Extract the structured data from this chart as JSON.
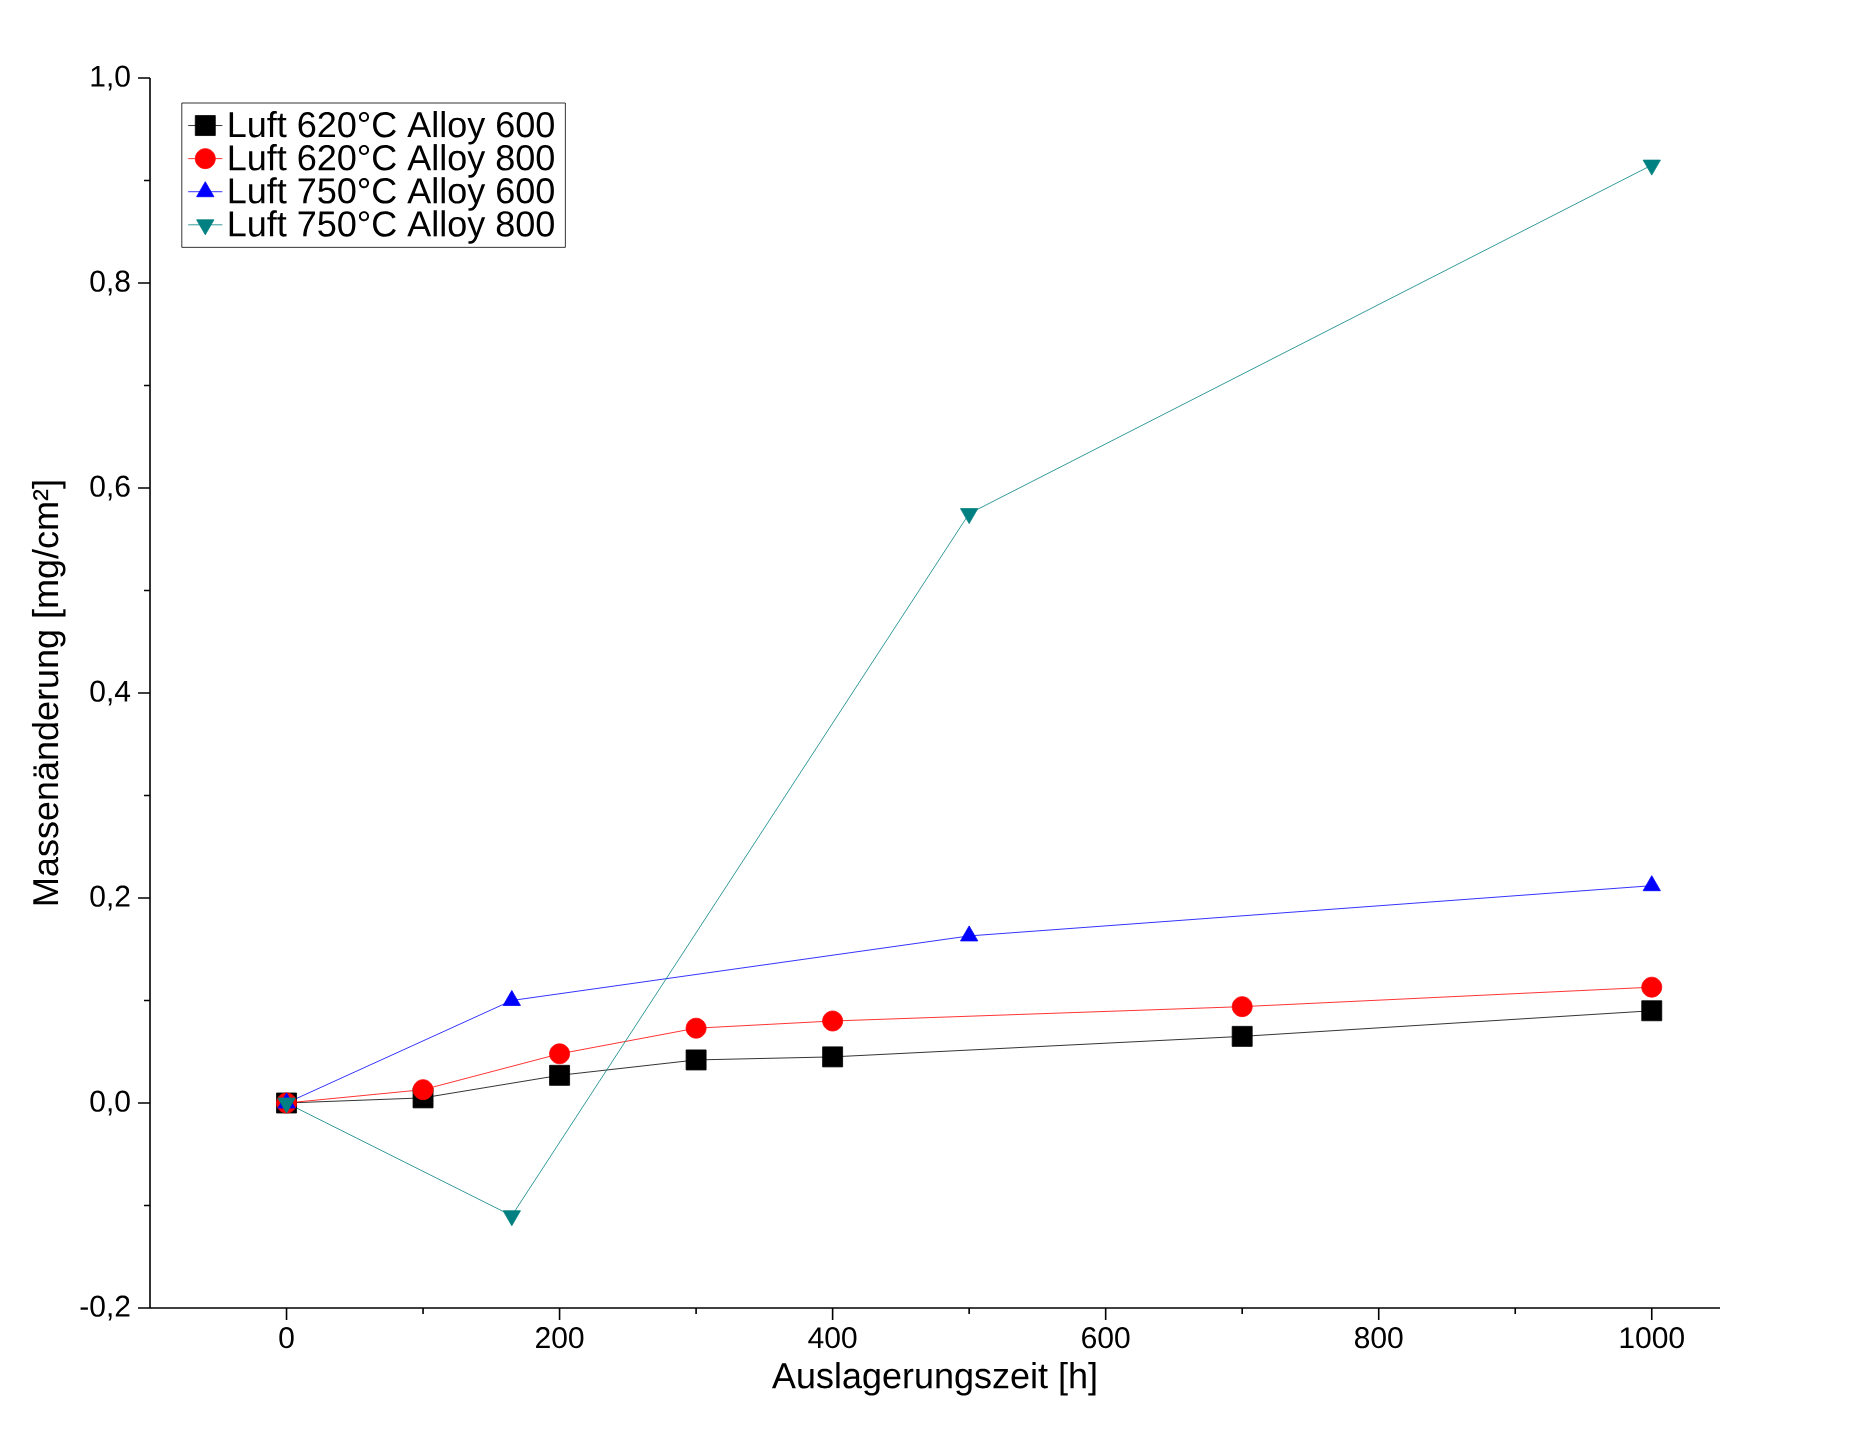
{
  "chart_data": {
    "type": "line",
    "xlabel": "Auslagerungszeit [h]",
    "ylabel": "Massenänderung [mg/cm²]",
    "xlim": [
      -100,
      1050
    ],
    "ylim": [
      -0.2,
      1.0
    ],
    "xticks": [
      0,
      200,
      400,
      600,
      800,
      1000
    ],
    "yticks": [
      {
        "value": -0.2,
        "label": "-0,2"
      },
      {
        "value": 0,
        "label": "0,0"
      },
      {
        "value": 0.2,
        "label": "0,2"
      },
      {
        "value": 0.4,
        "label": "0,4"
      },
      {
        "value": 0.6,
        "label": "0,6"
      },
      {
        "value": 0.8,
        "label": "0,8"
      },
      {
        "value": 1.0,
        "label": "1,0"
      }
    ],
    "grid": false,
    "legend": "top left",
    "series": [
      {
        "name": "Luft 620°C Alloy 600",
        "color": "#000000",
        "marker": "square",
        "x": [
          0,
          100,
          200,
          300,
          400,
          700,
          1000
        ],
        "values": [
          0,
          0.005,
          0.027,
          0.042,
          0.045,
          0.065,
          0.09
        ]
      },
      {
        "name": "Luft 620°C Alloy 800",
        "color": "#ff0000",
        "marker": "circle",
        "x": [
          0,
          100,
          200,
          300,
          400,
          700,
          1000
        ],
        "values": [
          0,
          0.013,
          0.048,
          0.073,
          0.08,
          0.094,
          0.113
        ]
      },
      {
        "name": "Luft 750°C Alloy 600",
        "color": "#0000ff",
        "marker": "triangle",
        "x": [
          0,
          165,
          500,
          1000
        ],
        "values": [
          0,
          0.1,
          0.163,
          0.212
        ]
      },
      {
        "name": "Luft 750°C Alloy 800",
        "color": "#008080",
        "marker": "triangle-down",
        "x": [
          0,
          165,
          500,
          1000
        ],
        "values": [
          0,
          -0.11,
          0.575,
          0.915
        ]
      }
    ]
  }
}
